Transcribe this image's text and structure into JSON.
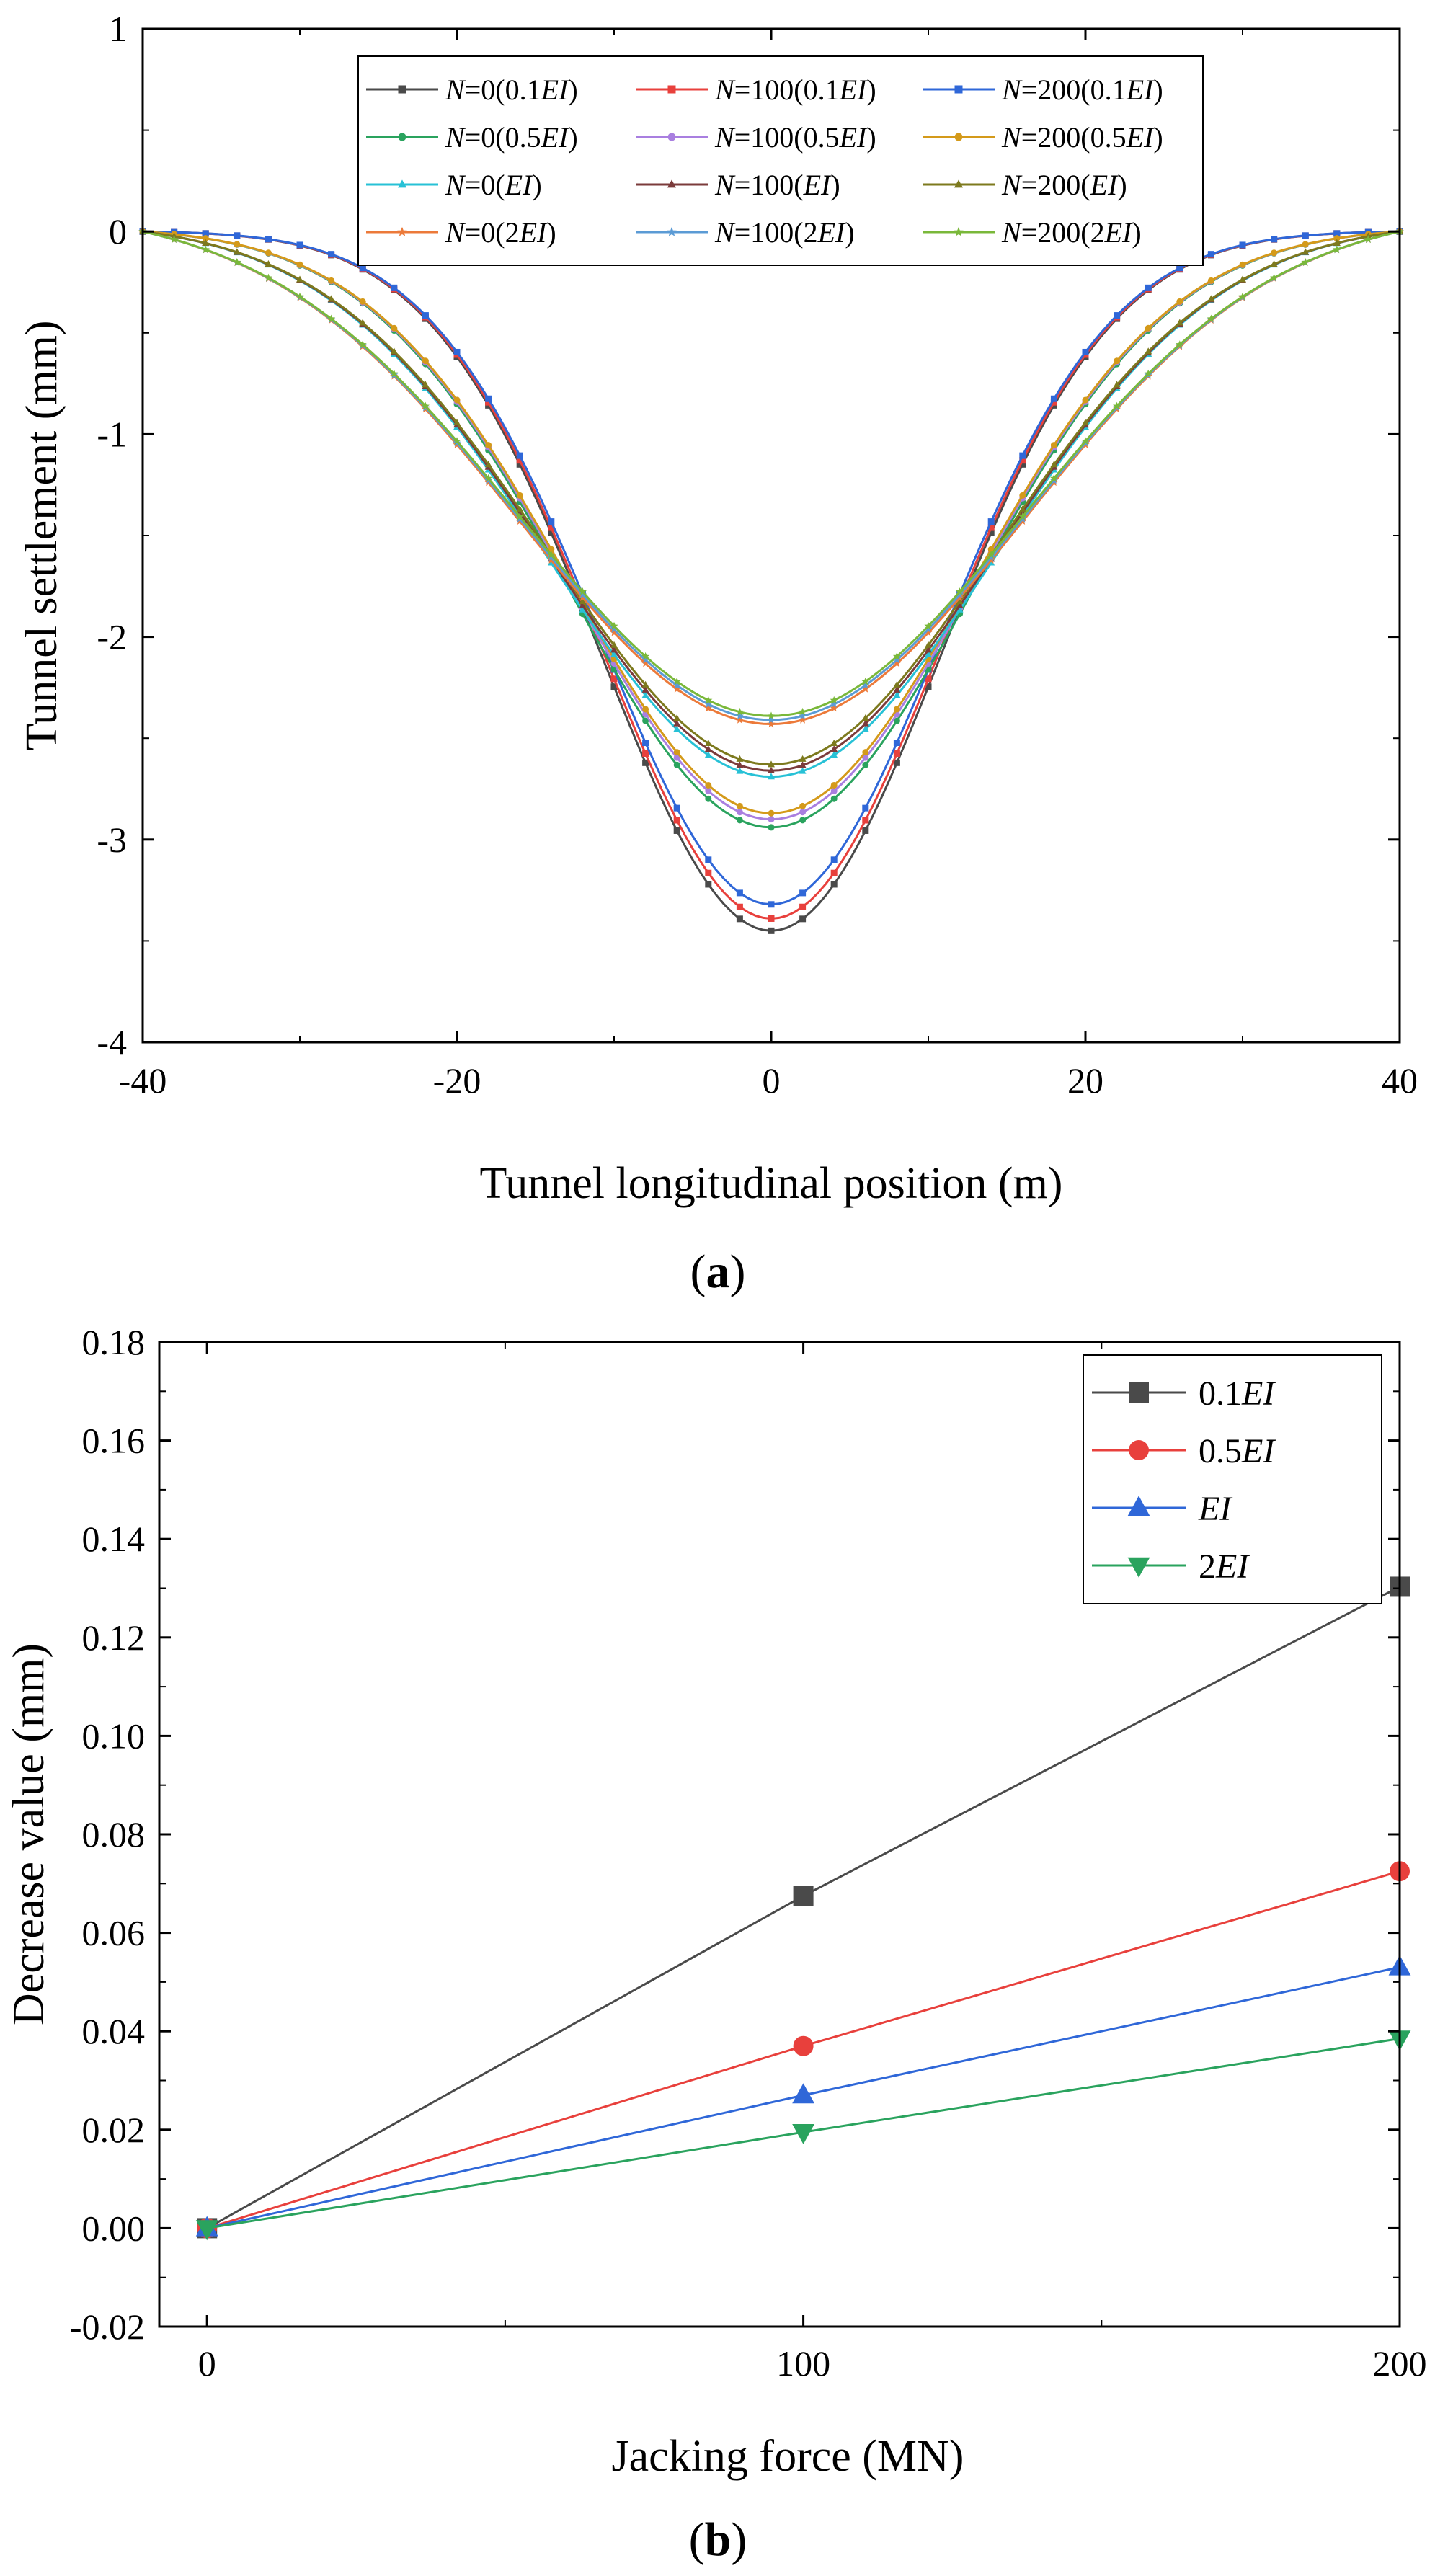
{
  "figure_labels": {
    "a_open": "(",
    "a_letter": "a",
    "a_close": ")",
    "b_open": "(",
    "b_letter": "b",
    "b_close": ")"
  },
  "chart_data": [
    {
      "id": "a",
      "type": "line",
      "title": "",
      "xlabel": "Tunnel longitudinal position (m)",
      "ylabel": "Tunnel settlement (mm)",
      "xlim": [
        -40,
        40
      ],
      "ylim": [
        -4,
        1
      ],
      "xticks": [
        -40,
        -20,
        0,
        20,
        40
      ],
      "yticks": [
        1,
        0,
        -1,
        -2,
        -3,
        -4
      ],
      "xtick_labels": [
        "-40",
        "-20",
        "0",
        "20",
        "40"
      ],
      "ytick_labels": [
        "1",
        "0",
        "-1",
        "-2",
        "-3",
        "-4"
      ],
      "legend": {
        "position": "top",
        "columns": 3
      },
      "curve_model": "gaussian settlement profile, centre x = 0, zero at x = ±40",
      "series": [
        {
          "name": "N=0(0.1EI)",
          "legend_parts": [
            "N",
            "=0(0.1",
            "EI",
            ")"
          ],
          "color": "#4a4a4a",
          "marker": "square",
          "min": -3.45,
          "width": 10.8
        },
        {
          "name": "N=100(0.1EI)",
          "legend_parts": [
            "N",
            "=100(0.1",
            "EI",
            ")"
          ],
          "color": "#e8403c",
          "marker": "square",
          "min": -3.39,
          "width": 10.8
        },
        {
          "name": "N=200(0.1EI)",
          "legend_parts": [
            "N",
            "=200(0.1",
            "EI",
            ")"
          ],
          "color": "#2f67d8",
          "marker": "square",
          "min": -3.32,
          "width": 10.8
        },
        {
          "name": "N=0(0.5EI)",
          "legend_parts": [
            "N",
            "=0(0.5",
            "EI",
            ")"
          ],
          "color": "#2aa35e",
          "marker": "circle",
          "min": -2.94,
          "width": 12.8
        },
        {
          "name": "N=100(0.5EI)",
          "legend_parts": [
            "N",
            "=100(0.5",
            "EI",
            ")"
          ],
          "color": "#a97fe0",
          "marker": "circle",
          "min": -2.9,
          "width": 12.8
        },
        {
          "name": "N=200(0.5EI)",
          "legend_parts": [
            "N",
            "=200(0.5",
            "EI",
            ")"
          ],
          "color": "#d49a1a",
          "marker": "circle",
          "min": -2.87,
          "width": 12.8
        },
        {
          "name": "N=0(EI)",
          "legend_parts": [
            "N",
            "=0(",
            "EI",
            ")"
          ],
          "color": "#27c1d6",
          "marker": "triangle-up",
          "min": -2.69,
          "width": 14.2
        },
        {
          "name": "N=100(EI)",
          "legend_parts": [
            "N",
            "=100(",
            "EI",
            ")"
          ],
          "color": "#7b3b3b",
          "marker": "triangle-up",
          "min": -2.66,
          "width": 14.2
        },
        {
          "name": "N=200(EI)",
          "legend_parts": [
            "N",
            "=200(",
            "EI",
            ")"
          ],
          "color": "#7d7a1e",
          "marker": "triangle-up",
          "min": -2.63,
          "width": 14.2
        },
        {
          "name": "N=0(2EI)",
          "legend_parts": [
            "N",
            "=0(2",
            "EI",
            ")"
          ],
          "color": "#ec7a3a",
          "marker": "star",
          "min": -2.43,
          "width": 16.0
        },
        {
          "name": "N=100(2EI)",
          "legend_parts": [
            "N",
            "=100(2",
            "EI",
            ")"
          ],
          "color": "#5b9bd5",
          "marker": "star",
          "min": -2.41,
          "width": 16.0
        },
        {
          "name": "N=200(2EI)",
          "legend_parts": [
            "N",
            "=200(2",
            "EI",
            ")"
          ],
          "color": "#7ab83a",
          "marker": "star",
          "min": -2.39,
          "width": 16.0
        }
      ]
    },
    {
      "id": "b",
      "type": "line",
      "title": "",
      "xlabel": "Jacking force (MN)",
      "ylabel": "Decrease value (mm)",
      "xlim": [
        -8,
        200
      ],
      "ylim": [
        -0.02,
        0.18
      ],
      "xticks": [
        0,
        100,
        200
      ],
      "yticks": [
        0.18,
        0.16,
        0.14,
        0.12,
        0.1,
        0.08,
        0.06,
        0.04,
        0.02,
        0.0,
        -0.02
      ],
      "xtick_labels": [
        "0",
        "100",
        "200"
      ],
      "ytick_labels": [
        "0.18",
        "0.16",
        "0.14",
        "0.12",
        "0.10",
        "0.08",
        "0.06",
        "0.04",
        "0.02",
        "0.00",
        "-0.02"
      ],
      "legend": {
        "position": "top-right"
      },
      "x": [
        0,
        100,
        200
      ],
      "series": [
        {
          "name": "0.1EI",
          "legend_parts": [
            "0.1",
            "EI"
          ],
          "color": "#4a4a4a",
          "marker": "square",
          "values": [
            0,
            0.0675,
            0.1303
          ]
        },
        {
          "name": "0.5EI",
          "legend_parts": [
            "0.5",
            "EI"
          ],
          "color": "#e8403c",
          "marker": "circle",
          "values": [
            0,
            0.037,
            0.0725
          ]
        },
        {
          "name": "EI",
          "legend_parts": [
            "",
            "EI"
          ],
          "color": "#2f67d8",
          "marker": "triangle-up",
          "values": [
            0,
            0.027,
            0.053
          ]
        },
        {
          "name": "2EI",
          "legend_parts": [
            "2",
            "EI"
          ],
          "color": "#2aa35e",
          "marker": "triangle-down",
          "values": [
            0,
            0.0195,
            0.0385
          ]
        }
      ]
    }
  ]
}
